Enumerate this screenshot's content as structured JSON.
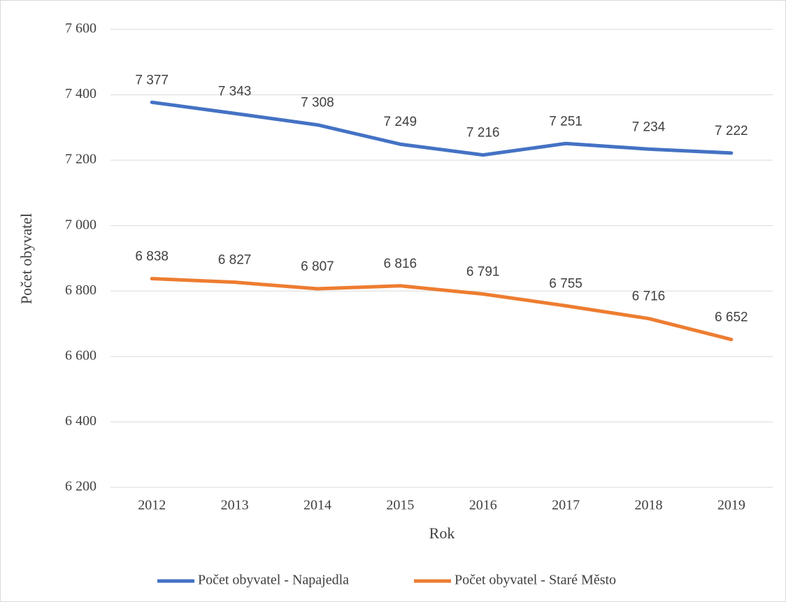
{
  "chart_data": {
    "type": "line",
    "categories": [
      "2012",
      "2013",
      "2014",
      "2015",
      "2016",
      "2017",
      "2018",
      "2019"
    ],
    "series": [
      {
        "name": "Počet obyvatel - Napajedla",
        "color": "#4472c4",
        "values": [
          7377,
          7343,
          7308,
          7249,
          7216,
          7251,
          7234,
          7222
        ],
        "value_labels": [
          "7 377",
          "7 343",
          "7 308",
          "7 249",
          "7 216",
          "7 251",
          "7 234",
          "7 222"
        ]
      },
      {
        "name": "Počet obyvatel - Staré Město",
        "color": "#ed7d31",
        "values": [
          6838,
          6827,
          6807,
          6816,
          6791,
          6755,
          6716,
          6652
        ],
        "value_labels": [
          "6 838",
          "6 827",
          "6 807",
          "6 816",
          "6 791",
          "6 755",
          "6 716",
          "6 652"
        ]
      }
    ],
    "ylabel": "Počet obyvatel",
    "xlabel": "Rok",
    "ylim": [
      6200,
      7600
    ],
    "yticks": [
      {
        "value": 6200,
        "label": "6 200"
      },
      {
        "value": 6400,
        "label": "6 400"
      },
      {
        "value": 6600,
        "label": "6 600"
      },
      {
        "value": 6800,
        "label": "6 800"
      },
      {
        "value": 7000,
        "label": "7 000"
      },
      {
        "value": 7200,
        "label": "7 200"
      },
      {
        "value": 7400,
        "label": "7 400"
      },
      {
        "value": 7600,
        "label": "7 600"
      }
    ],
    "grid": true,
    "legend": "bottom"
  }
}
